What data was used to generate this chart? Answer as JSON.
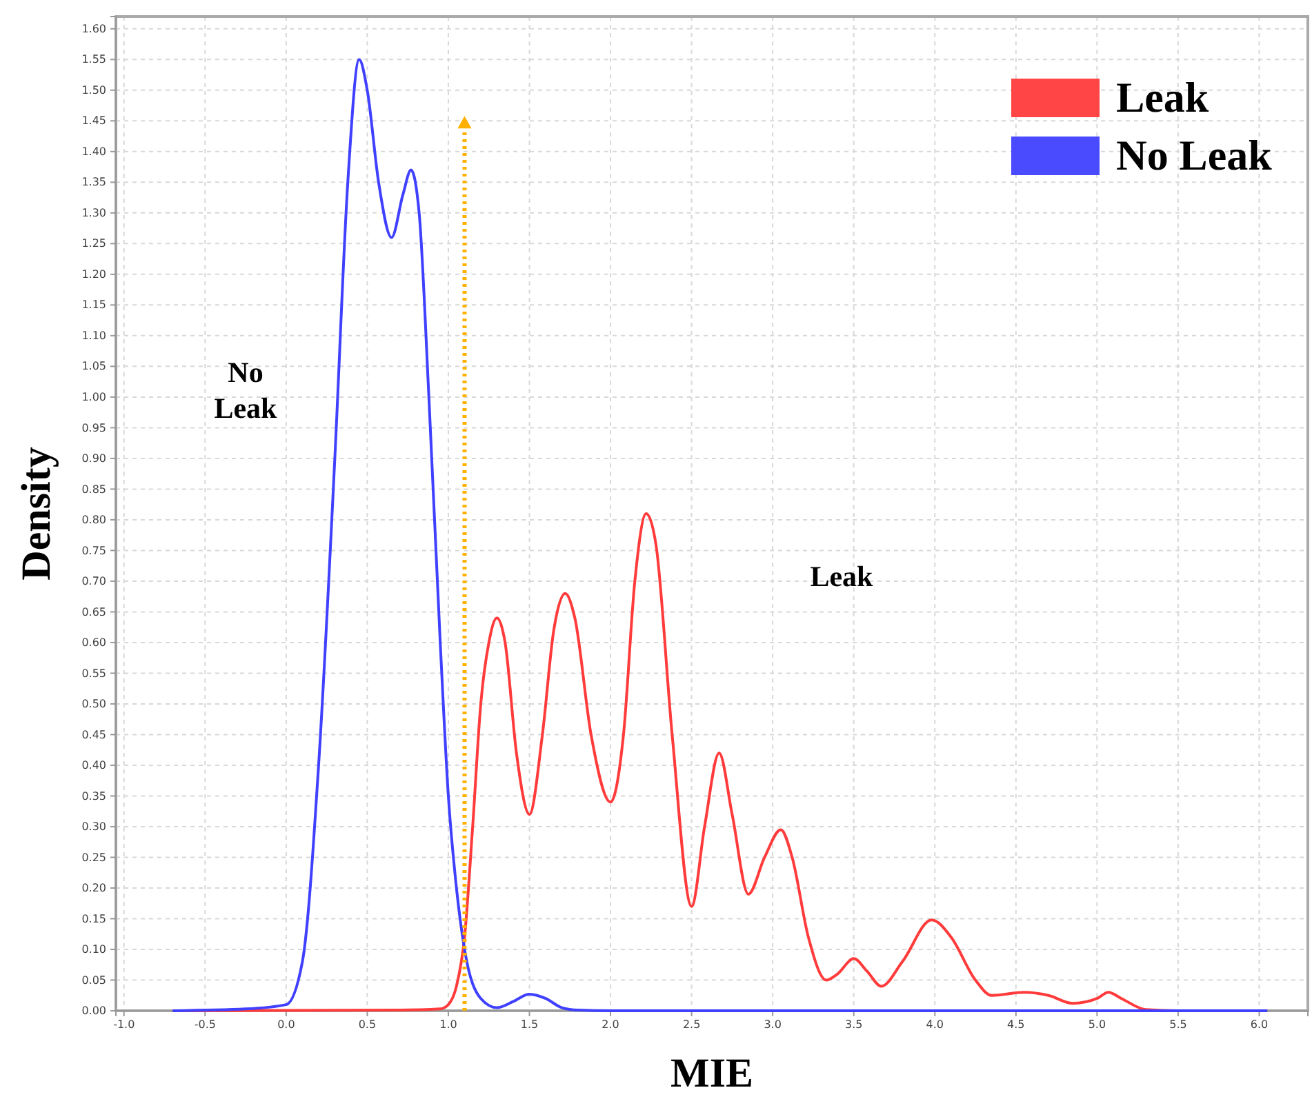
{
  "chart_data": {
    "type": "line",
    "xlabel": "MIE",
    "ylabel": "Density",
    "xlim": [
      -1.05,
      6.3
    ],
    "ylim": [
      0,
      1.62
    ],
    "xticks": [
      {
        "value": -1,
        "label": "-1.0"
      },
      -0.5,
      {
        "value": 0,
        "label": "0.0"
      },
      0.5,
      {
        "value": 1,
        "label": "1.0"
      },
      1.5,
      {
        "value": 2,
        "label": "2.0"
      },
      2.5,
      {
        "value": 3,
        "label": "3.0"
      },
      3.5,
      {
        "value": 4,
        "label": "4.0"
      },
      4.5,
      {
        "value": 5,
        "label": "5.0"
      },
      5.5,
      {
        "value": 6,
        "label": "6.0"
      }
    ],
    "yticks": [
      {
        "value": 0,
        "label": "0.00"
      },
      0.05,
      {
        "value": 0.1,
        "label": "0.10"
      },
      0.15,
      {
        "value": 0.2,
        "label": "0.20"
      },
      0.25,
      {
        "value": 0.3,
        "label": "0.30"
      },
      0.35,
      {
        "value": 0.4,
        "label": "0.40"
      },
      0.45,
      {
        "value": 0.5,
        "label": "0.50"
      },
      0.55,
      {
        "value": 0.6,
        "label": "0.60"
      },
      0.65,
      {
        "value": 0.7,
        "label": "0.70"
      },
      0.75,
      {
        "value": 0.8,
        "label": "0.80"
      },
      0.85,
      {
        "value": 0.9,
        "label": "0.90"
      },
      0.95,
      {
        "value": 1,
        "label": "1.00"
      },
      1.05,
      {
        "value": 1.1,
        "label": "1.10"
      },
      1.15,
      {
        "value": 1.2,
        "label": "1.20"
      },
      1.25,
      {
        "value": 1.3,
        "label": "1.30"
      },
      1.35,
      {
        "value": 1.4,
        "label": "1.40"
      },
      1.45,
      {
        "value": 1.5,
        "label": "1.50"
      },
      1.55,
      {
        "value": 1.6,
        "label": "1.60"
      }
    ],
    "grid": true,
    "legend": "top right",
    "marker": "none",
    "line_style": "solid",
    "series": [
      {
        "name": "Leak",
        "color": "#ff3b3b",
        "x": [
          -0.7,
          0.7,
          0.95,
          1.0,
          1.05,
          1.1,
          1.15,
          1.2,
          1.25,
          1.3,
          1.35,
          1.42,
          1.5,
          1.58,
          1.65,
          1.72,
          1.78,
          1.88,
          2.0,
          2.08,
          2.15,
          2.22,
          2.28,
          2.38,
          2.5,
          2.58,
          2.67,
          2.75,
          2.85,
          2.95,
          3.05,
          3.12,
          3.22,
          3.33,
          3.4,
          3.5,
          3.58,
          3.67,
          3.8,
          3.98,
          4.1,
          4.25,
          4.35,
          4.55,
          4.7,
          4.85,
          5.0,
          5.07,
          5.15,
          5.3,
          5.5,
          6.05
        ],
        "values": [
          0,
          0.001,
          0.003,
          0.01,
          0.04,
          0.12,
          0.3,
          0.5,
          0.6,
          0.64,
          0.6,
          0.42,
          0.32,
          0.45,
          0.62,
          0.68,
          0.64,
          0.45,
          0.34,
          0.45,
          0.7,
          0.81,
          0.76,
          0.45,
          0.17,
          0.3,
          0.42,
          0.32,
          0.19,
          0.25,
          0.295,
          0.25,
          0.12,
          0.05,
          0.06,
          0.085,
          0.065,
          0.04,
          0.08,
          0.148,
          0.12,
          0.05,
          0.025,
          0.03,
          0.025,
          0.012,
          0.02,
          0.03,
          0.02,
          0.002,
          0,
          0
        ]
      },
      {
        "name": "No Leak",
        "color": "#4040ff",
        "x": [
          -0.7,
          -0.25,
          0,
          0.1,
          0.2,
          0.3,
          0.38,
          0.45,
          0.5,
          0.57,
          0.65,
          0.72,
          0.77,
          0.82,
          0.88,
          0.95,
          1.0,
          1.05,
          1.1,
          1.2,
          1.3,
          1.4,
          1.5,
          1.6,
          1.7,
          1.8,
          2.0,
          6.05
        ],
        "values": [
          0,
          0.003,
          0.01,
          0.08,
          0.4,
          0.9,
          1.35,
          1.55,
          1.5,
          1.35,
          1.26,
          1.33,
          1.37,
          1.3,
          1.0,
          0.6,
          0.35,
          0.2,
          0.1,
          0.02,
          0.005,
          0.015,
          0.027,
          0.02,
          0.005,
          0.001,
          0,
          0
        ]
      }
    ],
    "ref_lines": [
      {
        "axis": "x",
        "value": 1.1,
        "color": "#ffb000",
        "line_style": "dotted"
      }
    ],
    "annotations": [
      "No Leak",
      "Leak"
    ]
  }
}
